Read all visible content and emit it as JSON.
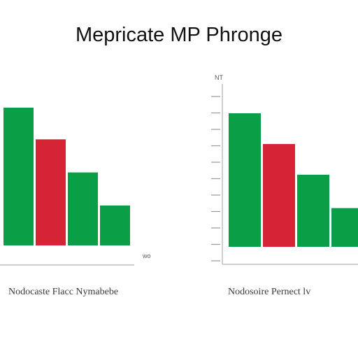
{
  "title": "Mepricate MP Phronge",
  "colors": {
    "bar_green": "#0a9e46",
    "bar_red": "#d42435",
    "axis": "#bfbfbf",
    "tick": "#9a9a9a"
  },
  "chart_data": [
    {
      "type": "bar",
      "title": "",
      "caption": "Nodocaste Flacc Nymabebe",
      "axis_tag": "wo",
      "ylim": [
        0,
        100
      ],
      "grid": false,
      "legend": "none",
      "values": [
        100,
        77,
        53,
        29
      ],
      "bar_colors": [
        "green",
        "red",
        "green",
        "green"
      ]
    },
    {
      "type": "bar",
      "title": "",
      "caption": "Nodosoire Pernect lv",
      "axis_tag": "NT",
      "ylim": [
        0,
        100
      ],
      "grid": false,
      "legend": "none",
      "values": [
        100,
        77,
        54,
        29
      ],
      "bar_colors": [
        "green",
        "red",
        "green",
        "green"
      ]
    }
  ]
}
